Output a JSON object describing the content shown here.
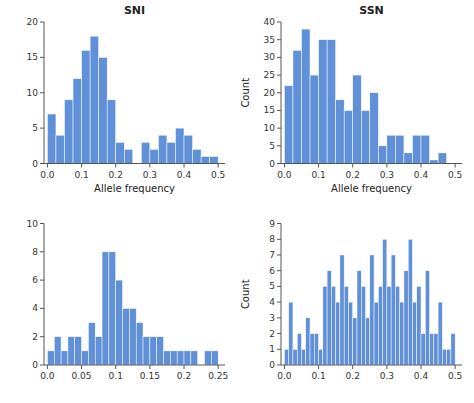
{
  "chart_data": [
    {
      "type": "histogram",
      "title": "SNI",
      "xlabel": "Allele frequency",
      "color": "#6090d8",
      "bins": [
        0.0,
        0.025,
        0.05,
        0.075,
        0.1,
        0.125,
        0.15,
        0.175,
        0.2,
        0.225,
        0.25,
        0.275,
        0.3,
        0.325,
        0.35,
        0.375,
        0.4,
        0.425,
        0.45,
        0.475,
        0.5
      ],
      "values": [
        7,
        4,
        9,
        12,
        16,
        18,
        15,
        9,
        3,
        2,
        0,
        3,
        2,
        4,
        3,
        5,
        4,
        2,
        1,
        1
      ],
      "xlim": [
        -0.01,
        0.52
      ],
      "ylim": [
        0,
        20
      ],
      "xticks": [
        {
          "value": 0.0,
          "label": "0.0"
        },
        0.1,
        0.2,
        0.3,
        0.4,
        0.5
      ],
      "yticks": [
        0,
        5,
        10,
        15,
        20
      ]
    },
    {
      "type": "histogram",
      "title": "SSN",
      "xlabel": "Allele frequency",
      "ylabel": "Count",
      "color": "#6090d8",
      "bins": [
        0.0,
        0.025,
        0.05,
        0.075,
        0.1,
        0.125,
        0.15,
        0.175,
        0.2,
        0.225,
        0.25,
        0.275,
        0.3,
        0.325,
        0.35,
        0.375,
        0.4,
        0.425,
        0.45,
        0.475,
        0.5
      ],
      "values": [
        22,
        32,
        38,
        25,
        35,
        35,
        18,
        15,
        25,
        15,
        20,
        5,
        8,
        8,
        3,
        8,
        8,
        1,
        3,
        0
      ],
      "xlim": [
        -0.01,
        0.52
      ],
      "ylim": [
        0,
        40
      ],
      "xticks": [
        {
          "value": 0.0,
          "label": "0.0"
        },
        0.1,
        0.2,
        0.3,
        0.4,
        0.5
      ],
      "yticks": [
        0,
        5,
        10,
        15,
        20,
        25,
        30,
        35,
        40
      ]
    },
    {
      "type": "histogram",
      "color": "#6090d8",
      "bins": [
        0.0,
        0.01,
        0.02,
        0.03,
        0.04,
        0.05,
        0.06,
        0.07,
        0.08,
        0.09,
        0.1,
        0.11,
        0.12,
        0.13,
        0.14,
        0.15,
        0.16,
        0.17,
        0.18,
        0.19,
        0.2,
        0.21,
        0.22,
        0.23,
        0.24,
        0.25
      ],
      "values": [
        1,
        2,
        1,
        2,
        2,
        1,
        3,
        2,
        8,
        8,
        6,
        4,
        4,
        3,
        2,
        2,
        2,
        1,
        1,
        1,
        1,
        1,
        0,
        1,
        1
      ],
      "xlim": [
        -0.005,
        0.26
      ],
      "ylim": [
        0,
        10
      ],
      "xticks": [
        {
          "value": 0.0,
          "label": "0.0"
        },
        0.05,
        0.1,
        0.15,
        0.2,
        0.25
      ],
      "yticks": [
        0,
        2,
        4,
        6,
        8,
        10
      ]
    },
    {
      "type": "histogram",
      "ylabel": "Count",
      "color": "#6090d8",
      "bins": [
        0.0,
        0.0125,
        0.025,
        0.0375,
        0.05,
        0.0625,
        0.075,
        0.0875,
        0.1,
        0.1125,
        0.125,
        0.1375,
        0.15,
        0.1625,
        0.175,
        0.1875,
        0.2,
        0.2125,
        0.225,
        0.2375,
        0.25,
        0.2625,
        0.275,
        0.2875,
        0.3,
        0.3125,
        0.325,
        0.3375,
        0.35,
        0.3625,
        0.375,
        0.3875,
        0.4,
        0.4125,
        0.425,
        0.4375,
        0.45,
        0.4625,
        0.475,
        0.4875,
        0.5
      ],
      "values": [
        1,
        4,
        1,
        2,
        1,
        3,
        2,
        2,
        1,
        5,
        6,
        5,
        4,
        7,
        5,
        4,
        3,
        6,
        5,
        3,
        7,
        4,
        5,
        8,
        5,
        7,
        5,
        4,
        6,
        8,
        4,
        5,
        2,
        6,
        2,
        2,
        4,
        1,
        1,
        2
      ],
      "xlim": [
        -0.01,
        0.52
      ],
      "ylim": [
        0,
        9
      ],
      "xticks": [
        {
          "value": 0.0,
          "label": "0.0"
        },
        0.1,
        0.2,
        0.3,
        0.4,
        0.5
      ],
      "yticks": [
        0,
        1,
        2,
        3,
        4,
        5,
        6,
        7,
        8,
        9
      ]
    }
  ]
}
